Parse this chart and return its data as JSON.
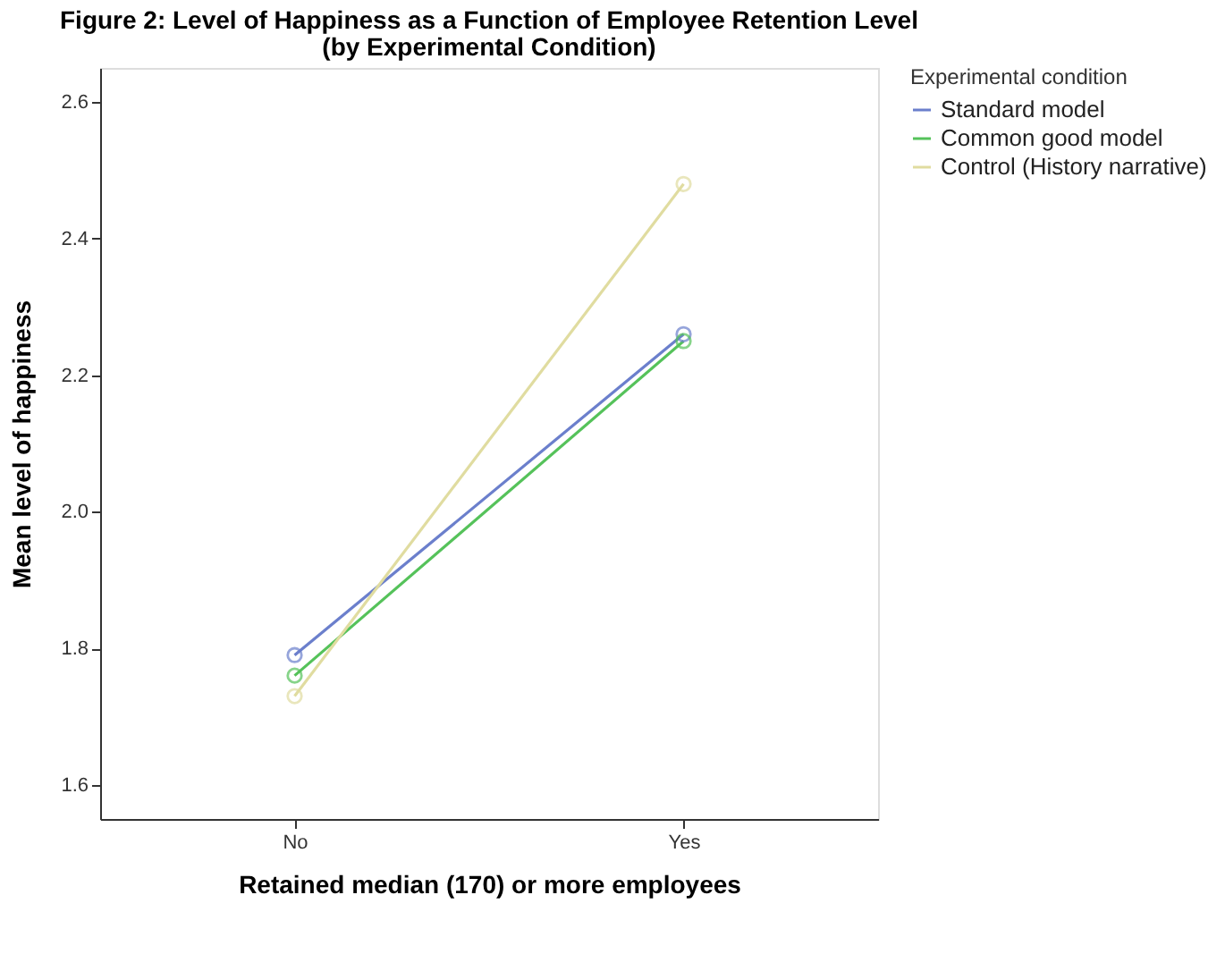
{
  "chart_data": {
    "type": "line",
    "title": "Figure 2: Level of Happiness as a Function of Employee Retention Level",
    "subtitle": "(by Experimental Condition)",
    "xlabel": "Retained median (170) or more employees",
    "ylabel": "Mean level of happiness",
    "legend_title": "Experimental condition",
    "categories": [
      "No",
      "Yes"
    ],
    "series": [
      {
        "name": "Standard model",
        "color": "#6b7fcc",
        "values": [
          1.79,
          2.26
        ]
      },
      {
        "name": "Common good model",
        "color": "#55c25a",
        "values": [
          1.76,
          2.25
        ]
      },
      {
        "name": "Control (History narrative)",
        "color": "#e0dca0",
        "values": [
          1.73,
          2.48
        ]
      }
    ],
    "ylim": [
      1.55,
      2.65
    ],
    "yticks": [
      {
        "value": 1.6,
        "label": "1.6"
      },
      {
        "value": 1.8,
        "label": "1.8"
      },
      {
        "value": 2,
        "label": "2.0"
      },
      {
        "value": 2.2,
        "label": "2.2"
      },
      {
        "value": 2.4,
        "label": "2.4"
      },
      {
        "value": 2.6,
        "label": "2.6"
      }
    ],
    "grid": false,
    "legend": "top right",
    "marker": "circle",
    "line_style": "solid"
  }
}
